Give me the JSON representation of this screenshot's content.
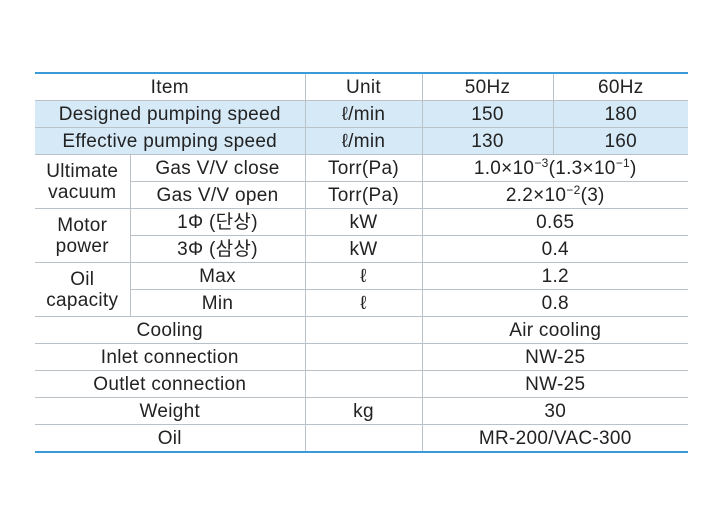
{
  "table": {
    "header": [
      "Item",
      "Unit",
      "50Hz",
      "60Hz"
    ],
    "speed_rows": [
      {
        "item": "Designed pumping speed",
        "unit": "ℓ/min",
        "v50": "150",
        "v60": "180"
      },
      {
        "item": "Effective pumping speed",
        "unit": "ℓ/min",
        "v50": "130",
        "v60": "160"
      }
    ],
    "groups": [
      {
        "label": "Ultimate vacuum",
        "rows": [
          {
            "item": "Gas V/V close",
            "unit": "Torr(Pa)",
            "value": [
              "1.0×10",
              "−3",
              "(1.3×10",
              "−1",
              ")"
            ]
          },
          {
            "item": "Gas V/V open",
            "unit": "Torr(Pa)",
            "value": [
              "2.2×10",
              "−2",
              "(3)"
            ]
          }
        ]
      },
      {
        "label": "Motor power",
        "rows": [
          {
            "item": "1Φ (단상)",
            "unit": "kW",
            "value": [
              "0.65"
            ]
          },
          {
            "item": "3Φ (삼상)",
            "unit": "kW",
            "value": [
              "0.4"
            ]
          }
        ]
      },
      {
        "label": "Oil capacity",
        "rows": [
          {
            "item": "Max",
            "unit": "ℓ",
            "value": [
              "1.2"
            ]
          },
          {
            "item": "Min",
            "unit": "ℓ",
            "value": [
              "0.8"
            ]
          }
        ]
      }
    ],
    "other_rows": [
      {
        "item": "Cooling",
        "unit": null,
        "value": "Air cooling"
      },
      {
        "item": "Inlet connection",
        "unit": null,
        "value": "NW-25"
      },
      {
        "item": "Outlet connection",
        "unit": null,
        "value": "NW-25"
      },
      {
        "item": "Weight",
        "unit": "kg",
        "value": "30"
      },
      {
        "item": "Oil",
        "unit": null,
        "value": "MR-200/VAC-300"
      }
    ]
  }
}
